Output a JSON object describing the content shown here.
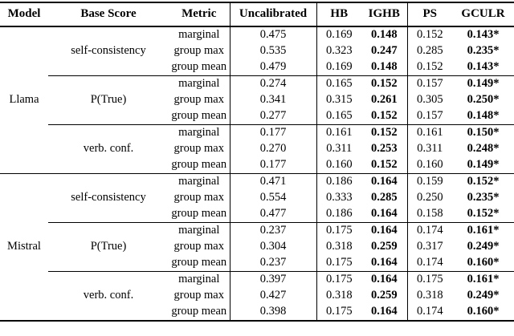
{
  "table": {
    "headers": {
      "model": "Model",
      "base_score": "Base Score",
      "metric": "Metric",
      "uncalibrated": "Uncalibrated",
      "hb": "HB",
      "ighb": "IGHB",
      "ps": "PS",
      "gculr": "GCULR"
    },
    "models": [
      {
        "name": "Llama",
        "groups": [
          {
            "base_score": "self-consistency",
            "rows": [
              {
                "metric": "marginal",
                "uncalibrated": "0.475",
                "hb": "0.169",
                "ighb": "0.148",
                "ps": "0.152",
                "gculr": "0.143*"
              },
              {
                "metric": "group max",
                "uncalibrated": "0.535",
                "hb": "0.323",
                "ighb": "0.247",
                "ps": "0.285",
                "gculr": "0.235*"
              },
              {
                "metric": "group mean",
                "uncalibrated": "0.479",
                "hb": "0.169",
                "ighb": "0.148",
                "ps": "0.152",
                "gculr": "0.143*"
              }
            ]
          },
          {
            "base_score": "P(True)",
            "rows": [
              {
                "metric": "marginal",
                "uncalibrated": "0.274",
                "hb": "0.165",
                "ighb": "0.152",
                "ps": "0.157",
                "gculr": "0.149*"
              },
              {
                "metric": "group max",
                "uncalibrated": "0.341",
                "hb": "0.315",
                "ighb": "0.261",
                "ps": "0.305",
                "gculr": "0.250*"
              },
              {
                "metric": "group mean",
                "uncalibrated": "0.277",
                "hb": "0.165",
                "ighb": "0.152",
                "ps": "0.157",
                "gculr": "0.148*"
              }
            ]
          },
          {
            "base_score": "verb. conf.",
            "rows": [
              {
                "metric": "marginal",
                "uncalibrated": "0.177",
                "hb": "0.161",
                "ighb": "0.152",
                "ps": "0.161",
                "gculr": "0.150*"
              },
              {
                "metric": "group max",
                "uncalibrated": "0.270",
                "hb": "0.311",
                "ighb": "0.253",
                "ps": "0.311",
                "gculr": "0.248*"
              },
              {
                "metric": "group mean",
                "uncalibrated": "0.177",
                "hb": "0.160",
                "ighb": "0.152",
                "ps": "0.160",
                "gculr": "0.149*"
              }
            ]
          }
        ]
      },
      {
        "name": "Mistral",
        "groups": [
          {
            "base_score": "self-consistency",
            "rows": [
              {
                "metric": "marginal",
                "uncalibrated": "0.471",
                "hb": "0.186",
                "ighb": "0.164",
                "ps": "0.159",
                "gculr": "0.152*"
              },
              {
                "metric": "group max",
                "uncalibrated": "0.554",
                "hb": "0.333",
                "ighb": "0.285",
                "ps": "0.250",
                "gculr": "0.235*"
              },
              {
                "metric": "group mean",
                "uncalibrated": "0.477",
                "hb": "0.186",
                "ighb": "0.164",
                "ps": "0.158",
                "gculr": "0.152*"
              }
            ]
          },
          {
            "base_score": "P(True)",
            "rows": [
              {
                "metric": "marginal",
                "uncalibrated": "0.237",
                "hb": "0.175",
                "ighb": "0.164",
                "ps": "0.174",
                "gculr": "0.161*"
              },
              {
                "metric": "group max",
                "uncalibrated": "0.304",
                "hb": "0.318",
                "ighb": "0.259",
                "ps": "0.317",
                "gculr": "0.249*"
              },
              {
                "metric": "group mean",
                "uncalibrated": "0.237",
                "hb": "0.175",
                "ighb": "0.164",
                "ps": "0.174",
                "gculr": "0.160*"
              }
            ]
          },
          {
            "base_score": "verb. conf.",
            "rows": [
              {
                "metric": "marginal",
                "uncalibrated": "0.397",
                "hb": "0.175",
                "ighb": "0.164",
                "ps": "0.175",
                "gculr": "0.161*"
              },
              {
                "metric": "group max",
                "uncalibrated": "0.427",
                "hb": "0.318",
                "ighb": "0.259",
                "ps": "0.318",
                "gculr": "0.249*"
              },
              {
                "metric": "group mean",
                "uncalibrated": "0.398",
                "hb": "0.175",
                "ighb": "0.164",
                "ps": "0.174",
                "gculr": "0.160*"
              }
            ]
          }
        ]
      }
    ]
  }
}
